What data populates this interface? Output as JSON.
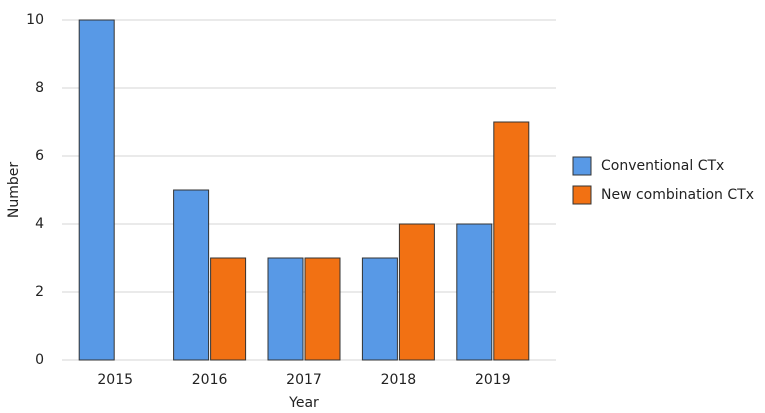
{
  "chart_data": {
    "type": "bar",
    "x_label": "Year",
    "y_label": "Number",
    "categories": [
      "2015",
      "2016",
      "2017",
      "2018",
      "2019"
    ],
    "series": [
      {
        "name": "Conventional CTx",
        "color": "#5899e6",
        "values": [
          10,
          5,
          3,
          3,
          4
        ]
      },
      {
        "name": "New combination CTx",
        "color": "#f27113",
        "values": [
          0,
          3,
          3,
          4,
          7
        ]
      }
    ],
    "ylim": [
      0,
      10
    ],
    "yticks": [
      0,
      2,
      4,
      6,
      8,
      10
    ],
    "grid": true,
    "legend": "right"
  }
}
